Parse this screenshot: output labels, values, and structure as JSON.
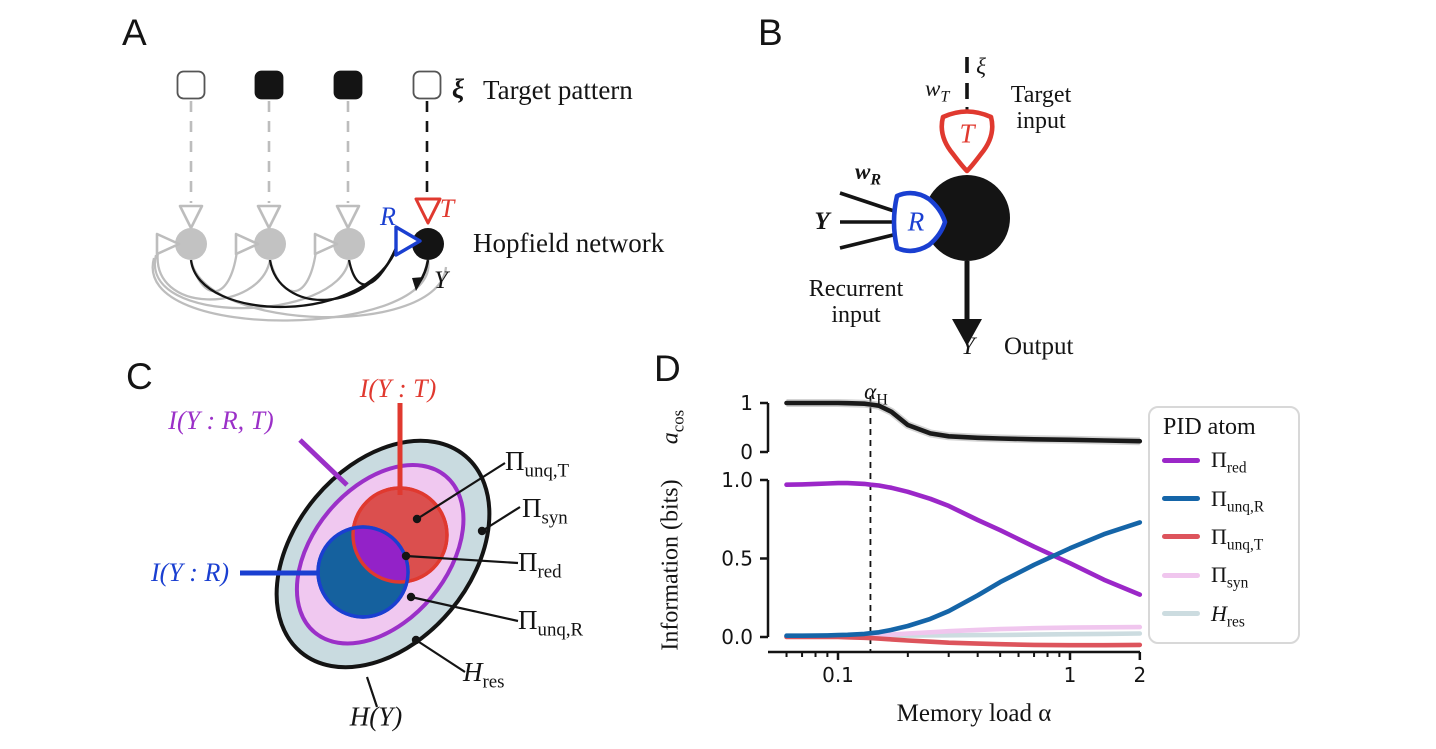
{
  "colors": {
    "black": "#141414",
    "gray_line": "#bdbdbd",
    "neuron_gray": "#c2c2c2",
    "red": "#e0392f",
    "blue": "#1a3fd1",
    "series_purple": "#9b27c8",
    "series_blue": "#1565a8",
    "series_red": "#dd545c",
    "series_pink": "#f0c6ee",
    "series_gray": "#ccdce0",
    "venn_red_fill": "#db4f4e",
    "venn_blue_fill": "#15619e",
    "venn_overlap": "#9322c8",
    "venn_outer_fill": "#c9dbe0",
    "venn_inner_fill": "#f0c8f0",
    "venn_inner_stroke": "#9b30c8"
  },
  "panels": {
    "a": {
      "label": "A",
      "xi": "ξ",
      "target_pattern": "Target pattern",
      "r": "R",
      "t": "T",
      "hopfield": "Hopfield network",
      "y": "Y"
    },
    "b": {
      "label": "B",
      "xi": "ξ",
      "w_t_base": "w",
      "w_t_sub": "T",
      "target_input": "Target\ninput",
      "t": "T",
      "w_r_base": "w",
      "w_r_sub": "R",
      "y_in": "Y",
      "r": "R",
      "recurrent_input": "Recurrent\ninput",
      "y_out": "Y",
      "output": "Output"
    },
    "c": {
      "label": "C",
      "i_yt": "I(Y : T)",
      "i_yrt": "I(Y : R, T)",
      "i_yr": "I(Y : R)",
      "pi_unq_t": {
        "base": "Π",
        "sub": "unq,T"
      },
      "pi_syn": {
        "base": "Π",
        "sub": "syn"
      },
      "pi_red": {
        "base": "Π",
        "sub": "red"
      },
      "pi_unq_r": {
        "base": "Π",
        "sub": "unq,R"
      },
      "h_res": {
        "base": "H",
        "sub": "res"
      },
      "h_y": "H(Y)"
    },
    "d": {
      "label": "D",
      "alpha_h_base": "α",
      "alpha_h_sub": "H",
      "xlabel": "Memory load α",
      "ylabel_bottom": "Information (bits)",
      "ylabel_top_base": "a",
      "ylabel_top_sub": "cos",
      "legend_title": "PID atom",
      "legend": [
        {
          "base": "Π",
          "sub": "red",
          "roman": true,
          "color": "#9b27c8"
        },
        {
          "base": "Π",
          "sub": "unq,R",
          "roman": true,
          "color": "#1565a8"
        },
        {
          "base": "Π",
          "sub": "unq,T",
          "roman": true,
          "color": "#dd545c"
        },
        {
          "base": "Π",
          "sub": "syn",
          "roman": true,
          "color": "#f0c6ee"
        },
        {
          "base": "H",
          "sub": "res",
          "roman": false,
          "color": "#ccdce0"
        }
      ]
    }
  },
  "chart_data": [
    {
      "type": "line",
      "id": "acos",
      "title": "",
      "xlabel": "",
      "ylabel": "a_cos",
      "xscale": "log",
      "xlim": [
        0.05,
        2.05
      ],
      "ylim": [
        0,
        1
      ],
      "yticks": {
        "values": [
          1,
          0
        ],
        "labels": [
          "1",
          "0"
        ]
      },
      "x": [
        0.06,
        0.07,
        0.08,
        0.09,
        0.1,
        0.11,
        0.13,
        0.138,
        0.15,
        0.17,
        0.2,
        0.25,
        0.3,
        0.4,
        0.5,
        0.7,
        1.0,
        1.4,
        2.0
      ],
      "series": [
        {
          "name": "a_cos",
          "color": "#1a1a1a",
          "values": [
            1.0,
            1.0,
            1.0,
            1.0,
            1.0,
            0.995,
            0.985,
            0.97,
            0.945,
            0.82,
            0.55,
            0.38,
            0.32,
            0.29,
            0.275,
            0.26,
            0.25,
            0.235,
            0.22
          ]
        }
      ],
      "annotations": [
        {
          "label": "α_H",
          "x": 0.138
        }
      ]
    },
    {
      "type": "line",
      "id": "pid",
      "title": "",
      "xlabel": "Memory load α",
      "ylabel": "Information (bits)",
      "xscale": "log",
      "xlim": [
        0.05,
        2.05
      ],
      "ylim": [
        -0.095,
        1.0
      ],
      "xticks": {
        "values": [
          0.1,
          1,
          2
        ],
        "labels": [
          "0.1",
          "1",
          "2"
        ]
      },
      "yticks": {
        "values": [
          1.0,
          0.5,
          0.0
        ],
        "labels": [
          "1.0",
          "0.5",
          "0.0"
        ]
      },
      "vline_x": 0.138,
      "legend_position": "right",
      "x": [
        0.06,
        0.07,
        0.08,
        0.09,
        0.1,
        0.11,
        0.13,
        0.138,
        0.15,
        0.17,
        0.2,
        0.25,
        0.3,
        0.4,
        0.5,
        0.7,
        1.0,
        1.4,
        2.0
      ],
      "series": [
        {
          "name": "Π_red",
          "color": "#9b27c8",
          "values": [
            0.97,
            0.972,
            0.975,
            0.978,
            0.98,
            0.98,
            0.975,
            0.97,
            0.965,
            0.95,
            0.925,
            0.88,
            0.835,
            0.745,
            0.68,
            0.575,
            0.47,
            0.365,
            0.27
          ]
        },
        {
          "name": "Π_unq,R",
          "color": "#1565a8",
          "values": [
            0.008,
            0.008,
            0.009,
            0.01,
            0.012,
            0.014,
            0.02,
            0.024,
            0.03,
            0.045,
            0.07,
            0.115,
            0.165,
            0.265,
            0.35,
            0.46,
            0.565,
            0.655,
            0.73
          ]
        },
        {
          "name": "Π_unq,T",
          "color": "#dd545c",
          "values": [
            0.0,
            0.0,
            0.0,
            0.0,
            0.0,
            -0.002,
            -0.005,
            -0.007,
            -0.01,
            -0.015,
            -0.022,
            -0.03,
            -0.036,
            -0.042,
            -0.046,
            -0.05,
            -0.052,
            -0.052,
            -0.05
          ]
        },
        {
          "name": "Π_syn",
          "color": "#f0c6ee",
          "values": [
            0.002,
            0.002,
            0.002,
            0.003,
            0.003,
            0.004,
            0.006,
            0.008,
            0.01,
            0.015,
            0.022,
            0.03,
            0.037,
            0.045,
            0.05,
            0.056,
            0.06,
            0.062,
            0.063
          ]
        },
        {
          "name": "H_res",
          "color": "#ccdce0",
          "values": [
            0.004,
            0.004,
            0.004,
            0.004,
            0.005,
            0.005,
            0.006,
            0.006,
            0.007,
            0.008,
            0.009,
            0.01,
            0.011,
            0.012,
            0.013,
            0.015,
            0.018,
            0.02,
            0.022
          ]
        }
      ]
    }
  ]
}
